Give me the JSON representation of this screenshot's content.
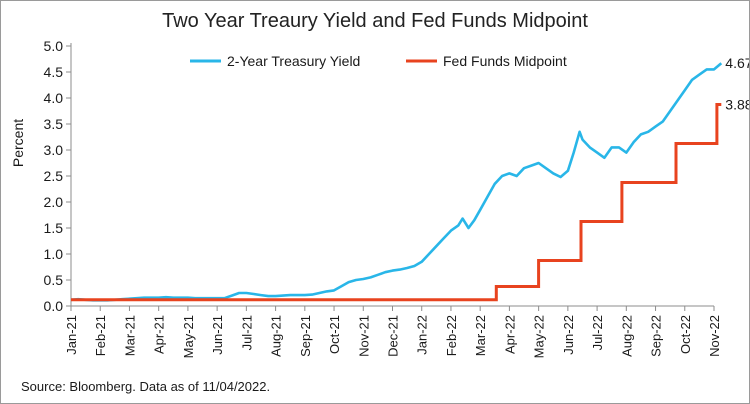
{
  "chart_data": {
    "type": "line",
    "title": "Two Year Treaury Yield and Fed Funds Midpoint",
    "ylabel": "Percent",
    "xlabel": "",
    "ylim": [
      0,
      5
    ],
    "yticks": [
      "0.0",
      "0.5",
      "1.0",
      "1.5",
      "2.0",
      "2.5",
      "3.0",
      "3.5",
      "4.0",
      "4.5",
      "5.0"
    ],
    "categories": [
      "Jan-21",
      "Feb-21",
      "Mar-21",
      "Apr-21",
      "May-21",
      "Jun-21",
      "Jul-21",
      "Aug-21",
      "Sep-21",
      "Oct-21",
      "Nov-21",
      "Dec-21",
      "Jan-22",
      "Feb-22",
      "Mar-22",
      "Apr-22",
      "May-22",
      "Jun-22",
      "Jul-22",
      "Aug-22",
      "Sep-22",
      "Oct-22",
      "Nov-22"
    ],
    "grid": false,
    "legend": "top",
    "source": "Source: Bloomberg. Data as of 11/04/2022.",
    "series": [
      {
        "name": "2-Year Treasury Yield",
        "color": "#29b6e8",
        "end_label": "4.67",
        "points": [
          [
            0,
            0.12
          ],
          [
            0.25,
            0.13
          ],
          [
            0.5,
            0.12
          ],
          [
            0.75,
            0.11
          ],
          [
            1,
            0.11
          ],
          [
            1.25,
            0.11
          ],
          [
            1.5,
            0.12
          ],
          [
            1.75,
            0.13
          ],
          [
            2,
            0.14
          ],
          [
            2.25,
            0.15
          ],
          [
            2.5,
            0.16
          ],
          [
            2.75,
            0.16
          ],
          [
            3,
            0.16
          ],
          [
            3.25,
            0.17
          ],
          [
            3.5,
            0.16
          ],
          [
            3.75,
            0.16
          ],
          [
            4,
            0.16
          ],
          [
            4.25,
            0.15
          ],
          [
            4.5,
            0.15
          ],
          [
            4.75,
            0.15
          ],
          [
            5,
            0.15
          ],
          [
            5.25,
            0.15
          ],
          [
            5.5,
            0.2
          ],
          [
            5.75,
            0.25
          ],
          [
            6,
            0.25
          ],
          [
            6.25,
            0.23
          ],
          [
            6.5,
            0.21
          ],
          [
            6.75,
            0.19
          ],
          [
            7,
            0.19
          ],
          [
            7.25,
            0.2
          ],
          [
            7.5,
            0.21
          ],
          [
            7.75,
            0.21
          ],
          [
            8,
            0.21
          ],
          [
            8.25,
            0.22
          ],
          [
            8.5,
            0.25
          ],
          [
            8.75,
            0.28
          ],
          [
            9,
            0.3
          ],
          [
            9.25,
            0.38
          ],
          [
            9.5,
            0.46
          ],
          [
            9.75,
            0.5
          ],
          [
            10,
            0.52
          ],
          [
            10.25,
            0.55
          ],
          [
            10.5,
            0.6
          ],
          [
            10.75,
            0.65
          ],
          [
            11,
            0.68
          ],
          [
            11.25,
            0.7
          ],
          [
            11.5,
            0.73
          ],
          [
            11.75,
            0.77
          ],
          [
            12,
            0.85
          ],
          [
            12.25,
            1.0
          ],
          [
            12.5,
            1.15
          ],
          [
            12.75,
            1.3
          ],
          [
            13,
            1.45
          ],
          [
            13.25,
            1.55
          ],
          [
            13.4,
            1.68
          ],
          [
            13.6,
            1.5
          ],
          [
            13.8,
            1.65
          ],
          [
            14,
            1.85
          ],
          [
            14.25,
            2.1
          ],
          [
            14.5,
            2.35
          ],
          [
            14.75,
            2.5
          ],
          [
            15,
            2.55
          ],
          [
            15.25,
            2.5
          ],
          [
            15.5,
            2.65
          ],
          [
            15.75,
            2.7
          ],
          [
            16,
            2.75
          ],
          [
            16.25,
            2.65
          ],
          [
            16.5,
            2.55
          ],
          [
            16.75,
            2.48
          ],
          [
            17,
            2.6
          ],
          [
            17.2,
            2.95
          ],
          [
            17.4,
            3.35
          ],
          [
            17.5,
            3.2
          ],
          [
            17.75,
            3.05
          ],
          [
            18,
            2.95
          ],
          [
            18.25,
            2.85
          ],
          [
            18.5,
            3.05
          ],
          [
            18.75,
            3.05
          ],
          [
            19,
            2.95
          ],
          [
            19.25,
            3.15
          ],
          [
            19.5,
            3.3
          ],
          [
            19.75,
            3.35
          ],
          [
            20,
            3.45
          ],
          [
            20.25,
            3.55
          ],
          [
            20.5,
            3.75
          ],
          [
            20.75,
            3.95
          ],
          [
            21,
            4.15
          ],
          [
            21.25,
            4.35
          ],
          [
            21.5,
            4.45
          ],
          [
            21.75,
            4.55
          ],
          [
            22,
            4.55
          ],
          [
            22.25,
            4.67
          ]
        ]
      },
      {
        "name": "Fed Funds Midpoint",
        "color": "#e8431f",
        "end_label": "3.88",
        "points": [
          [
            0,
            0.12
          ],
          [
            14.55,
            0.12
          ],
          [
            14.55,
            0.375
          ],
          [
            16,
            0.375
          ],
          [
            16,
            0.875
          ],
          [
            17.45,
            0.875
          ],
          [
            17.45,
            1.625
          ],
          [
            18.85,
            1.625
          ],
          [
            18.85,
            2.375
          ],
          [
            20.7,
            2.375
          ],
          [
            20.7,
            3.125
          ],
          [
            22.1,
            3.125
          ],
          [
            22.1,
            3.875
          ],
          [
            22.25,
            3.875
          ]
        ]
      }
    ]
  }
}
